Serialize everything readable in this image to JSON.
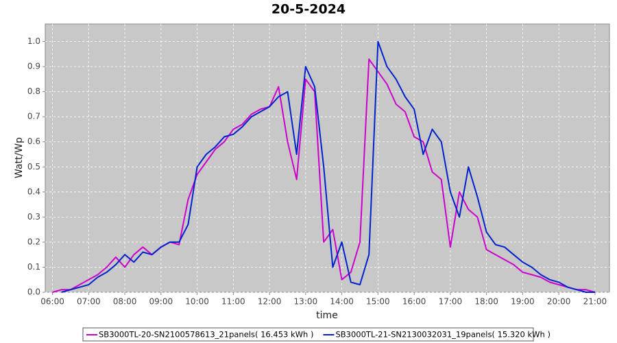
{
  "chart_data": {
    "type": "line",
    "title": "20-5-2024",
    "x_label": "time",
    "y_label": "Watt/Wp",
    "x": [
      6.0,
      6.25,
      6.5,
      6.75,
      7.0,
      7.25,
      7.5,
      7.75,
      8.0,
      8.25,
      8.5,
      8.75,
      9.0,
      9.25,
      9.5,
      9.75,
      10.0,
      10.25,
      10.5,
      10.75,
      11.0,
      11.25,
      11.5,
      11.75,
      12.0,
      12.25,
      12.5,
      12.75,
      13.0,
      13.25,
      13.5,
      13.75,
      14.0,
      14.25,
      14.5,
      14.75,
      15.0,
      15.25,
      15.5,
      15.75,
      16.0,
      16.25,
      16.5,
      16.75,
      17.0,
      17.25,
      17.5,
      17.75,
      18.0,
      18.25,
      18.5,
      18.75,
      19.0,
      19.25,
      19.5,
      19.75,
      20.0,
      20.25,
      20.5,
      20.75,
      21.0
    ],
    "series": [
      {
        "name": "SB3000TL-20-SN2100578613_21panels( 16.453 kWh )",
        "color": "#cc00cc",
        "values": [
          0,
          0.01,
          0.01,
          0.03,
          0.05,
          0.07,
          0.1,
          0.14,
          0.1,
          0.15,
          0.18,
          0.15,
          0.18,
          0.2,
          0.19,
          0.37,
          0.47,
          0.52,
          0.57,
          0.6,
          0.65,
          0.67,
          0.71,
          0.73,
          0.74,
          0.82,
          0.6,
          0.45,
          0.85,
          0.8,
          0.2,
          0.25,
          0.05,
          0.08,
          0.2,
          0.93,
          0.88,
          0.83,
          0.75,
          0.72,
          0.62,
          0.6,
          0.48,
          0.45,
          0.18,
          0.4,
          0.33,
          0.3,
          0.17,
          0.15,
          0.13,
          0.11,
          0.08,
          0.07,
          0.06,
          0.04,
          0.03,
          0.02,
          0.01,
          0.01,
          0
        ]
      },
      {
        "name": "SB3000TL-21-SN2130032031_19panels( 15.320 kWh )",
        "color": "#0022cc",
        "values": [
          null,
          0,
          0.01,
          0.02,
          0.03,
          0.06,
          0.08,
          0.11,
          0.15,
          0.12,
          0.16,
          0.15,
          0.18,
          0.2,
          0.2,
          0.27,
          0.5,
          0.55,
          0.58,
          0.62,
          0.63,
          0.66,
          0.7,
          0.72,
          0.74,
          0.78,
          0.8,
          0.55,
          0.9,
          0.82,
          0.5,
          0.1,
          0.2,
          0.04,
          0.03,
          0.15,
          1.0,
          0.9,
          0.85,
          0.78,
          0.73,
          0.55,
          0.65,
          0.6,
          0.4,
          0.3,
          0.5,
          0.38,
          0.24,
          0.19,
          0.18,
          0.15,
          0.12,
          0.1,
          0.07,
          0.05,
          0.04,
          0.02,
          0.01,
          0,
          0
        ]
      }
    ],
    "xlim": [
      5.8,
      21.4
    ],
    "ylim": [
      0,
      1.07
    ],
    "xticks": [
      {
        "value": 6,
        "label": "06:00"
      },
      {
        "value": 7,
        "label": "07:00"
      },
      {
        "value": 8,
        "label": "08:00"
      },
      {
        "value": 9,
        "label": "09:00"
      },
      {
        "value": 10,
        "label": "10:00"
      },
      {
        "value": 11,
        "label": "11:00"
      },
      {
        "value": 12,
        "label": "12:00"
      },
      {
        "value": 13,
        "label": "13:00"
      },
      {
        "value": 14,
        "label": "14:00"
      },
      {
        "value": 15,
        "label": "15:00"
      },
      {
        "value": 16,
        "label": "16:00"
      },
      {
        "value": 17,
        "label": "17:00"
      },
      {
        "value": 18,
        "label": "18:00"
      },
      {
        "value": 19,
        "label": "19:00"
      },
      {
        "value": 20,
        "label": "20:00"
      },
      {
        "value": 21,
        "label": "21:00"
      }
    ],
    "yticks": [
      {
        "value": 0,
        "label": "0.0"
      },
      0.1,
      0.2,
      0.3,
      0.4,
      0.5,
      0.6,
      0.7,
      0.8,
      0.9,
      {
        "value": 1,
        "label": "1.0"
      }
    ],
    "grid": true,
    "legend": "bottom"
  }
}
